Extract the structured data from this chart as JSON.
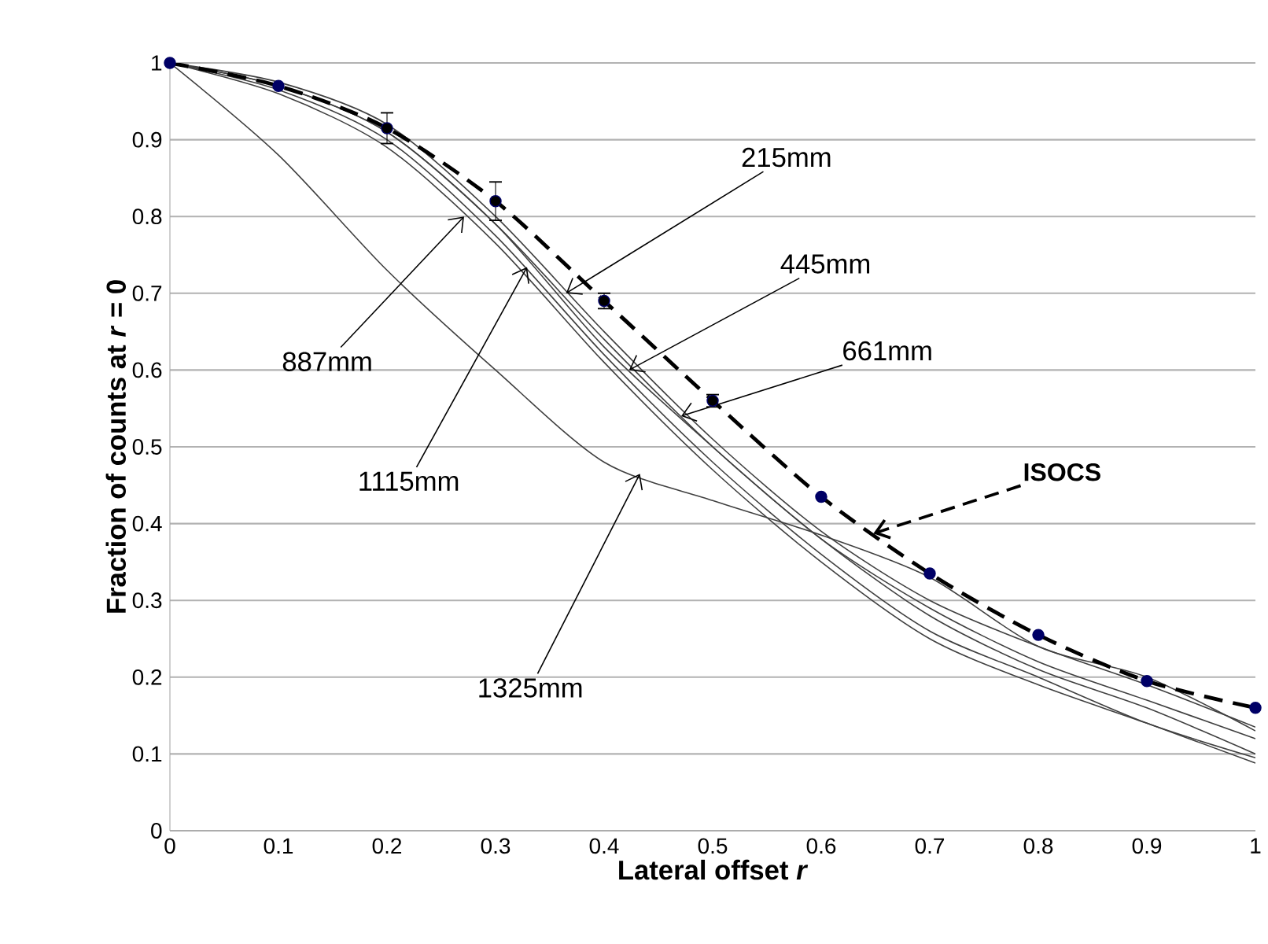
{
  "chart_data": {
    "type": "line",
    "xlabel": "Lateral offset *r*",
    "ylabel": "Fraction of counts at *r* = 0",
    "x": [
      0,
      0.1,
      0.2,
      0.3,
      0.4,
      0.5,
      0.6,
      0.7,
      0.8,
      0.9,
      1
    ],
    "xlim": [
      0,
      1
    ],
    "ylim": [
      0,
      1
    ],
    "xticks": [
      0,
      0.1,
      0.2,
      0.3,
      0.4,
      0.5,
      0.6,
      0.7,
      0.8,
      0.9,
      1
    ],
    "yticks": [
      0,
      0.1,
      0.2,
      0.3,
      0.4,
      0.5,
      0.6,
      0.7,
      0.8,
      0.9,
      1
    ],
    "grid": "y",
    "series": [
      {
        "color": "#404040",
        "marker": "none",
        "line_style": "solid",
        "values": [
          1,
          0.975,
          0.92,
          0.8,
          0.65,
          0.51,
          0.39,
          0.3,
          0.24,
          0.19,
          0.135
        ]
      },
      {
        "color": "#404040",
        "marker": "none",
        "line_style": "solid",
        "values": [
          1,
          0.97,
          0.91,
          0.79,
          0.63,
          0.5,
          0.38,
          0.29,
          0.22,
          0.17,
          0.12
        ]
      },
      {
        "color": "#404040",
        "marker": "none",
        "line_style": "solid",
        "values": [
          1,
          0.97,
          0.91,
          0.79,
          0.64,
          0.5,
          0.38,
          0.28,
          0.21,
          0.16,
          0.1
        ]
      },
      {
        "color": "#404040",
        "marker": "none",
        "line_style": "solid",
        "values": [
          1,
          0.965,
          0.9,
          0.775,
          0.62,
          0.48,
          0.36,
          0.26,
          0.2,
          0.14,
          0.095
        ]
      },
      {
        "color": "#404040",
        "marker": "none",
        "line_style": "solid",
        "values": [
          1,
          0.96,
          0.89,
          0.765,
          0.61,
          0.47,
          0.35,
          0.25,
          0.19,
          0.14,
          0.088
        ]
      },
      {
        "color": "#404040",
        "marker": "none",
        "line_style": "solid",
        "values": [
          1,
          0.88,
          0.73,
          0.6,
          0.48,
          0.43,
          0.385,
          0.33,
          0.24,
          0.2,
          0.13
        ]
      },
      {
        "color": "#000000",
        "marker": "circle",
        "line_style": "dashed",
        "values": [
          1,
          0.97,
          0.915,
          0.82,
          0.69,
          0.56,
          0.435,
          0.335,
          0.255,
          0.195,
          0.16
        ],
        "errors": [
          null,
          null,
          0.02,
          0.025,
          0.01,
          0.008,
          null,
          null,
          null,
          null,
          null
        ]
      }
    ],
    "annotations": [
      {
        "text": "215mm",
        "x": 0.365,
        "y": 0.7
      },
      {
        "text": "445mm",
        "x": 0.423,
        "y": 0.6
      },
      {
        "text": "661mm",
        "x": 0.471,
        "y": 0.54
      },
      {
        "text": "887mm",
        "x": 0.271,
        "y": 0.8
      },
      {
        "text": "1115mm",
        "x": 0.329,
        "y": 0.734
      },
      {
        "text": "1325mm",
        "x": 0.433,
        "y": 0.465
      },
      {
        "text": "ISOCS",
        "x": 0.648,
        "y": 0.387
      }
    ]
  }
}
